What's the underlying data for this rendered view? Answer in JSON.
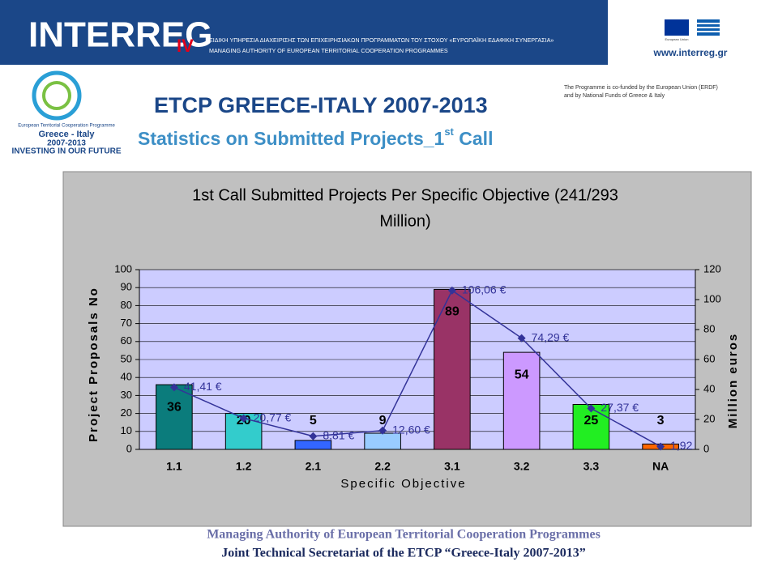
{
  "header": {
    "brand": "INTERREG",
    "brand_suffix": "IV",
    "line_gr": "ΕΙΔΙΚΗ ΥΠΗΡΕΣΙΑ ΔΙΑΧΕΙΡΙΣΗΣ ΤΩΝ ΕΠΙΧΕΙΡΗΣΙΑΚΩΝ ΠΡΟΓΡΑΜΜΑΤΩΝ ΤΟΥ ΣΤΟΧΟΥ «ΕΥΡΩΠΑΪΚΗ ΕΔΑΦΙΚΗ ΣΥΝΕΡΓΑΣΙΑ»",
    "line_en": "MANAGING AUTHORITY OF EUROPEAN TERRITORIAL COOPERATION PROGRAMMES",
    "eu_label": "European Union",
    "website": "www.interreg.gr"
  },
  "logo": {
    "programme": "European Territorial Cooperation Programme",
    "name": "Greece - Italy",
    "period": "2007-2013",
    "motto": "INVESTING IN OUR FUTURE"
  },
  "cofund": [
    "The Programme is co-funded by the European Union (ERDF)",
    "and by National Funds of Greece & Italy"
  ],
  "slide": {
    "title": "ETCP GREECE-ITALY 2007-2013",
    "subtitle": [
      "Statistics on Submitted Projects_1",
      "st",
      " Call"
    ]
  },
  "footer": [
    "Managing Authority of European Territorial Cooperation Programmes",
    "Joint Technical Secretariat of the ETCP “Greece-Italy 2007-2013”"
  ],
  "chart_data": {
    "type": "bar",
    "title": [
      "1st Call Submitted Projects Per Specific Objective (241/293",
      "Million)"
    ],
    "x_label": "Specific Objective",
    "y_label": "Project Proposals No",
    "y2_label": "Million euros",
    "categories": [
      "1.1",
      "1.2",
      "2.1",
      "2.2",
      "3.1",
      "3.2",
      "3.3",
      "NA"
    ],
    "series": [
      {
        "type": "bar",
        "colors": [
          "#0b7c7c",
          "#33cccc",
          "#3366ff",
          "#99ccff",
          "#993366",
          "#cc99ff",
          "#22ee22",
          "#ff6600"
        ],
        "values": [
          36,
          20,
          5,
          9,
          89,
          54,
          25,
          3
        ]
      },
      {
        "type": "line",
        "axis": "y2",
        "color": "#333399",
        "values": [
          41.41,
          20.77,
          8.81,
          12.6,
          106.06,
          74.29,
          27.37,
          1.92
        ],
        "value_labels": [
          "41,41 €",
          "20,77 €",
          "8,81 €",
          "12,60 €",
          "106,06 €",
          "74,29 €",
          "27,37 €",
          "1,92"
        ]
      }
    ],
    "ylim": [
      0,
      100
    ],
    "yticks": [
      0,
      10,
      20,
      30,
      40,
      50,
      60,
      70,
      80,
      90,
      100
    ],
    "y2lim": [
      0,
      120
    ],
    "y2ticks": [
      0,
      20,
      40,
      60,
      80,
      100,
      120
    ],
    "grid": true
  }
}
